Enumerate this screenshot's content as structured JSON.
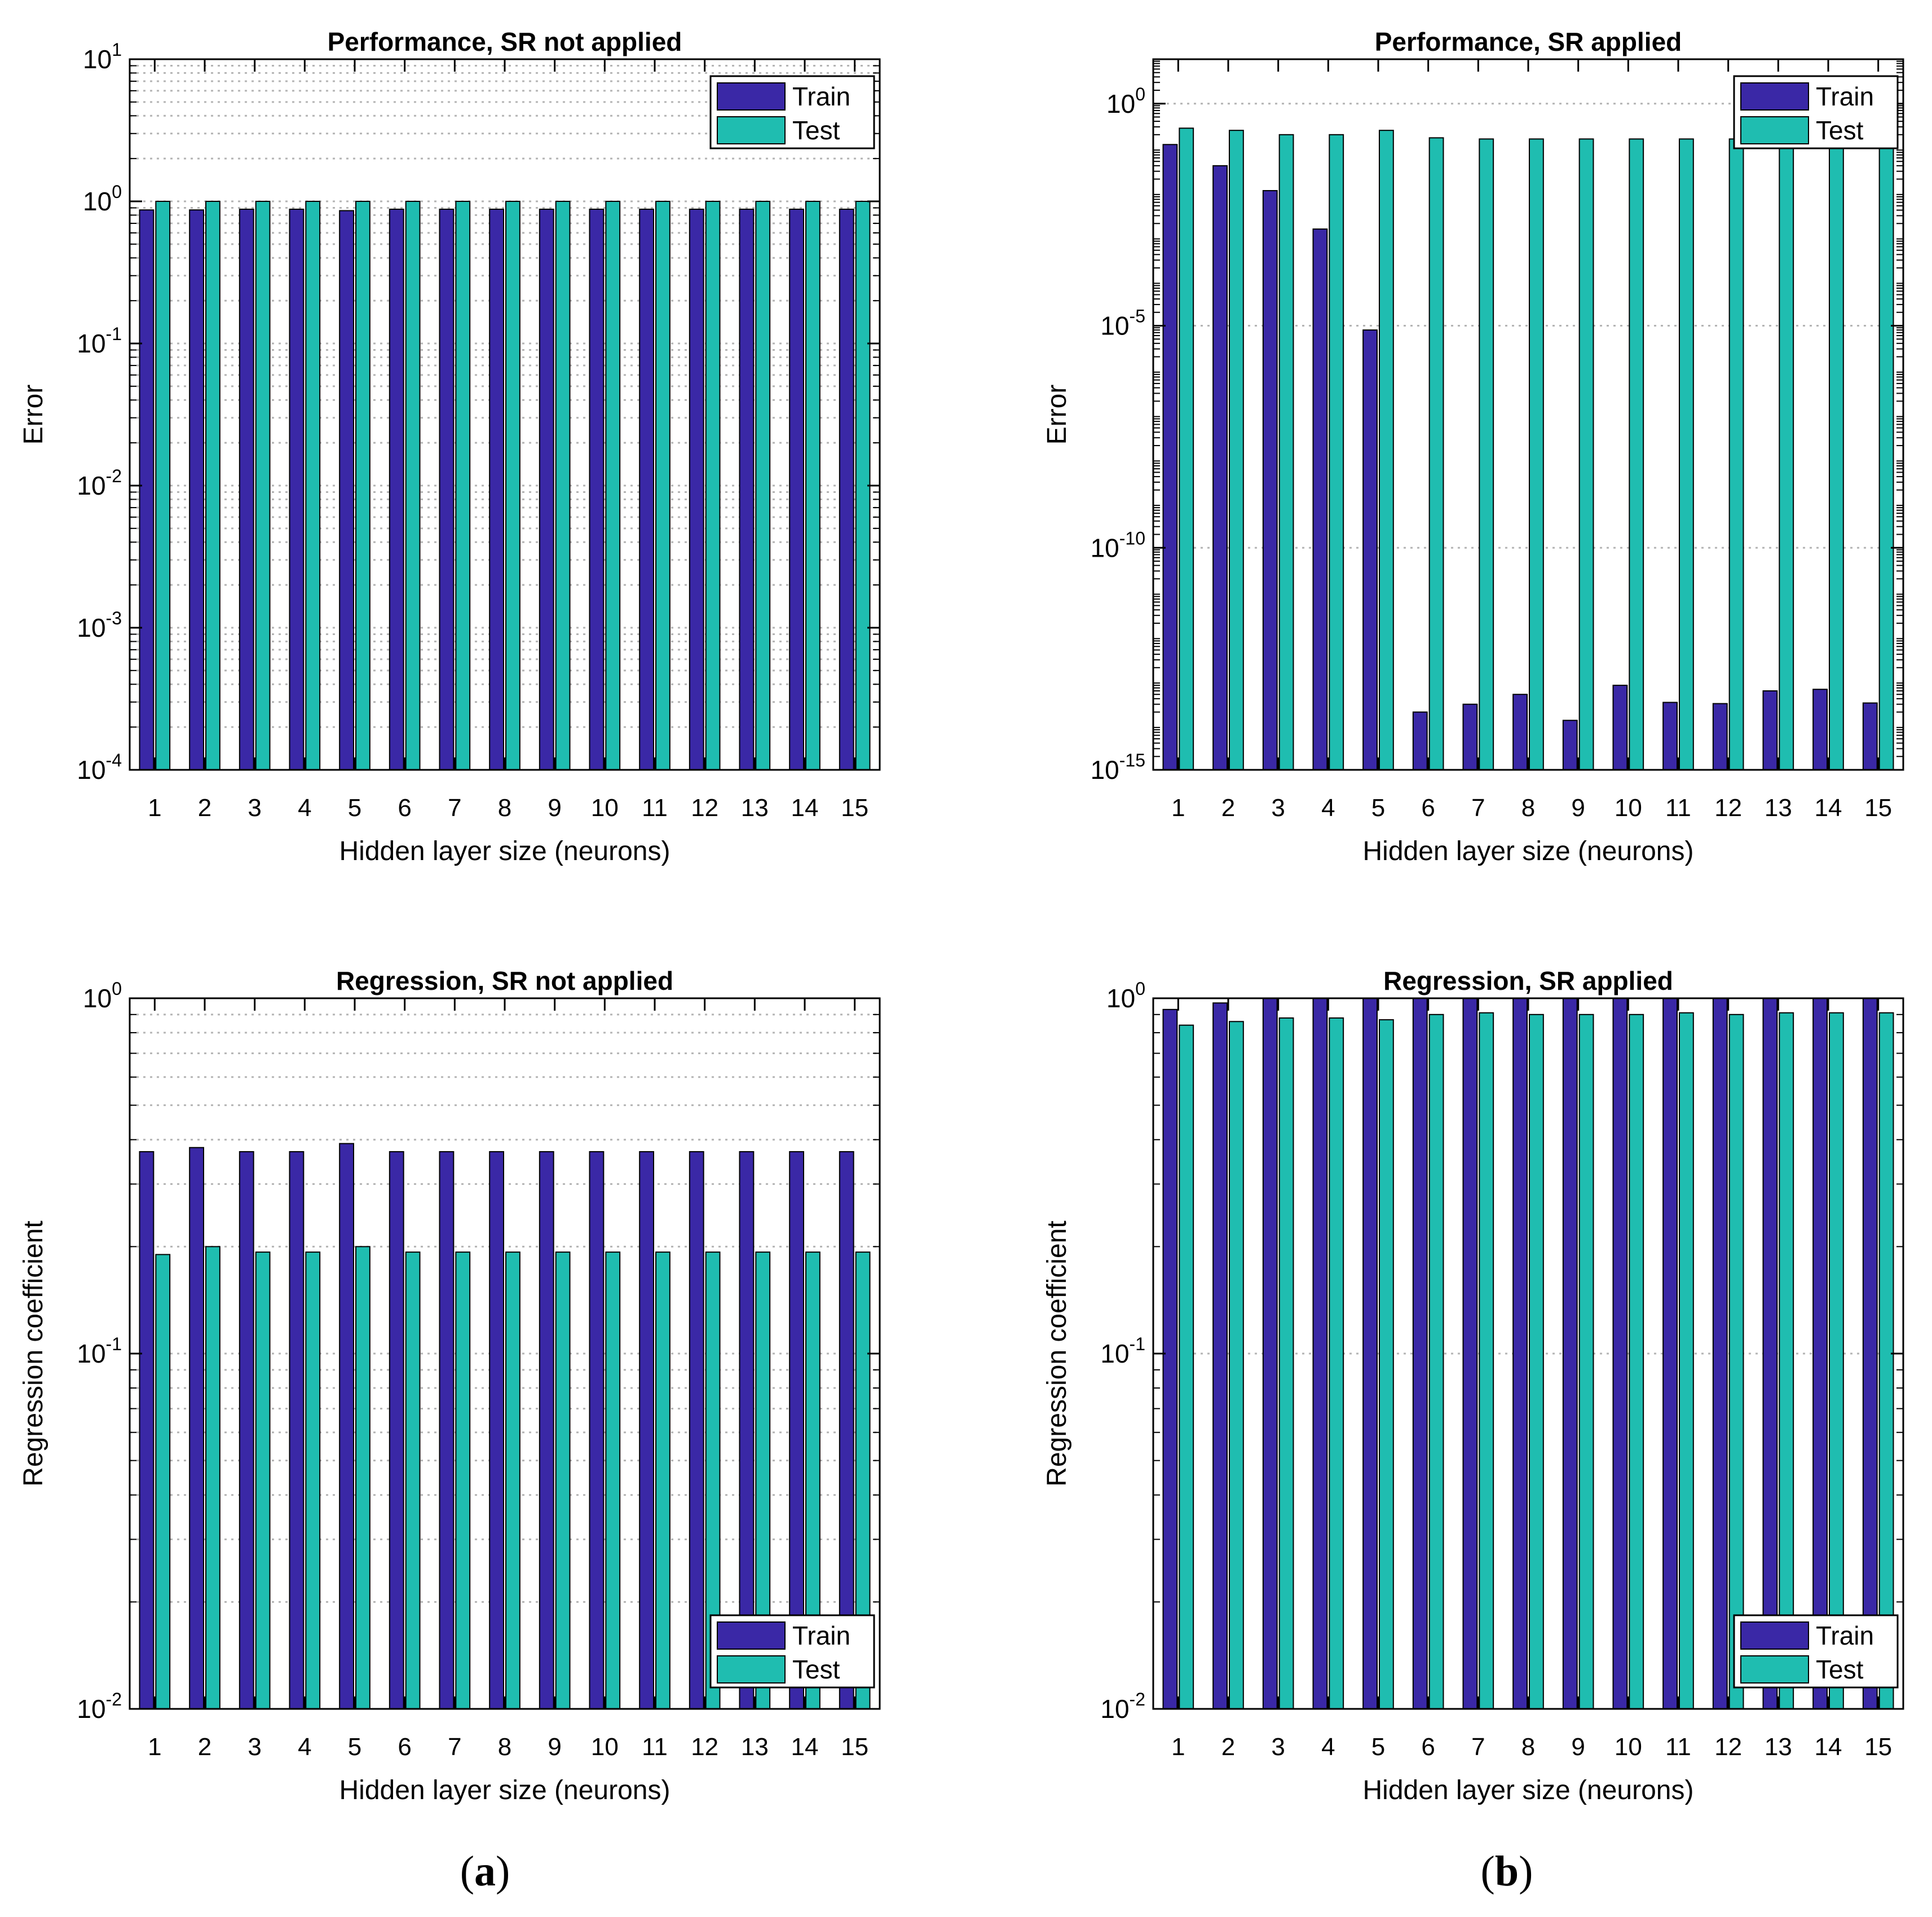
{
  "colors": {
    "train": "#3a28a6",
    "test": "#1fbdb0",
    "grid": "#b4b4b4",
    "axis": "#000000"
  },
  "captions": {
    "a": "a",
    "b": "b"
  },
  "chart_data": [
    {
      "id": "perf-no-sr",
      "type": "bar",
      "scale": "log",
      "title": "Performance, SR not applied",
      "xlabel": "Hidden layer size (neurons)",
      "ylabel": "Error",
      "ylim": [
        0.0001,
        10
      ],
      "yticks": [
        {
          "v": 0.0001,
          "base": "10",
          "exp": "-4"
        },
        {
          "v": 0.001,
          "base": "10",
          "exp": "-3"
        },
        {
          "v": 0.01,
          "base": "10",
          "exp": "-2"
        },
        {
          "v": 0.1,
          "base": "10",
          "exp": "-1"
        },
        {
          "v": 1,
          "base": "10",
          "exp": "0"
        },
        {
          "v": 10,
          "base": "10",
          "exp": "1"
        }
      ],
      "grid_minor": true,
      "categories": [
        "1",
        "2",
        "3",
        "4",
        "5",
        "6",
        "7",
        "8",
        "9",
        "10",
        "11",
        "12",
        "13",
        "14",
        "15"
      ],
      "series": [
        {
          "name": "Train",
          "values": [
            0.87,
            0.87,
            0.88,
            0.88,
            0.86,
            0.88,
            0.88,
            0.88,
            0.88,
            0.88,
            0.88,
            0.88,
            0.88,
            0.88,
            0.88
          ]
        },
        {
          "name": "Test",
          "values": [
            1.0,
            1.0,
            1.0,
            1.0,
            1.0,
            1.0,
            1.0,
            1.0,
            1.0,
            1.0,
            1.0,
            1.0,
            1.0,
            1.0,
            1.0
          ]
        }
      ],
      "legend": "top-right"
    },
    {
      "id": "perf-sr",
      "type": "bar",
      "scale": "log",
      "title": "Performance, SR applied",
      "xlabel": "Hidden layer size (neurons)",
      "ylabel": "Error",
      "ylim": [
        1e-15,
        10
      ],
      "yticks": [
        {
          "v": 1e-15,
          "base": "10",
          "exp": "-15"
        },
        {
          "v": 1e-10,
          "base": "10",
          "exp": "-10"
        },
        {
          "v": 1e-05,
          "base": "10",
          "exp": "-5"
        },
        {
          "v": 1,
          "base": "10",
          "exp": "0"
        }
      ],
      "grid_minor": false,
      "categories": [
        "1",
        "2",
        "3",
        "4",
        "5",
        "6",
        "7",
        "8",
        "9",
        "10",
        "11",
        "12",
        "13",
        "14",
        "15"
      ],
      "series": [
        {
          "name": "Train",
          "values": [
            0.12,
            0.04,
            0.011,
            0.0015,
            8e-06,
            2e-14,
            3e-14,
            5e-14,
            1.3e-14,
            8e-14,
            3.3e-14,
            3.1e-14,
            6e-14,
            6.5e-14,
            3.2e-14
          ]
        },
        {
          "name": "Test",
          "values": [
            0.28,
            0.25,
            0.2,
            0.2,
            0.25,
            0.17,
            0.16,
            0.16,
            0.16,
            0.16,
            0.16,
            0.16,
            0.16,
            0.16,
            0.16
          ]
        }
      ],
      "legend": "top-right"
    },
    {
      "id": "reg-no-sr",
      "type": "bar",
      "scale": "log",
      "title": "Regression, SR not applied",
      "xlabel": "Hidden layer size (neurons)",
      "ylabel": "Regression coefficient",
      "ylim": [
        0.01,
        1
      ],
      "yticks": [
        {
          "v": 0.01,
          "base": "10",
          "exp": "-2"
        },
        {
          "v": 0.1,
          "base": "10",
          "exp": "-1"
        },
        {
          "v": 1,
          "base": "10",
          "exp": "0"
        }
      ],
      "grid_minor": true,
      "categories": [
        "1",
        "2",
        "3",
        "4",
        "5",
        "6",
        "7",
        "8",
        "9",
        "10",
        "11",
        "12",
        "13",
        "14",
        "15"
      ],
      "series": [
        {
          "name": "Train",
          "values": [
            0.37,
            0.38,
            0.37,
            0.37,
            0.39,
            0.37,
            0.37,
            0.37,
            0.37,
            0.37,
            0.37,
            0.37,
            0.37,
            0.37,
            0.37
          ]
        },
        {
          "name": "Test",
          "values": [
            0.19,
            0.2,
            0.193,
            0.193,
            0.2,
            0.193,
            0.193,
            0.193,
            0.193,
            0.193,
            0.193,
            0.193,
            0.193,
            0.193,
            0.193
          ]
        }
      ],
      "legend": "bottom-right"
    },
    {
      "id": "reg-sr",
      "type": "bar",
      "scale": "log",
      "title": "Regression, SR applied",
      "xlabel": "Hidden layer size (neurons)",
      "ylabel": "Regression coefficient",
      "ylim": [
        0.01,
        1
      ],
      "yticks": [
        {
          "v": 0.01,
          "base": "10",
          "exp": "-2"
        },
        {
          "v": 0.1,
          "base": "10",
          "exp": "-1"
        },
        {
          "v": 1,
          "base": "10",
          "exp": "0"
        }
      ],
      "grid_minor": false,
      "categories": [
        "1",
        "2",
        "3",
        "4",
        "5",
        "6",
        "7",
        "8",
        "9",
        "10",
        "11",
        "12",
        "13",
        "14",
        "15"
      ],
      "series": [
        {
          "name": "Train",
          "values": [
            0.93,
            0.97,
            1.0,
            1.0,
            1.0,
            1.0,
            1.0,
            1.0,
            1.0,
            1.0,
            1.0,
            1.0,
            1.0,
            1.0,
            1.0
          ]
        },
        {
          "name": "Test",
          "values": [
            0.84,
            0.86,
            0.88,
            0.88,
            0.87,
            0.9,
            0.91,
            0.9,
            0.9,
            0.9,
            0.91,
            0.9,
            0.91,
            0.91,
            0.91
          ]
        }
      ],
      "legend": "bottom-right"
    }
  ]
}
